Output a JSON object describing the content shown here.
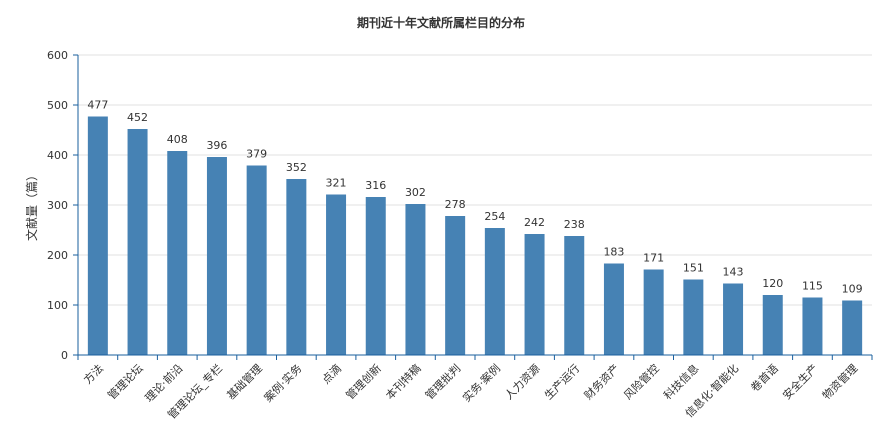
{
  "chart_data": {
    "type": "bar",
    "title": "期刊近十年文献所属栏目的分布",
    "xlabel": "",
    "ylabel": "文献量（篇）",
    "ylim": [
      0,
      600
    ],
    "yticks": [
      0,
      100,
      200,
      300,
      400,
      500,
      600
    ],
    "grid": true,
    "legend": "none",
    "bar_color": "#4682b4",
    "categories": [
      "方法",
      "管理论坛",
      "理论·前沿",
      "管理论坛_专栏",
      "基础管理",
      "案例·实务",
      "点滴",
      "管理创新",
      "本刊特稿",
      "管理批判",
      "实务·案例",
      "人力资源",
      "生产运行",
      "财务资产",
      "风险管控",
      "科技信息",
      "信息化·智能化",
      "卷首语",
      "安全生产",
      "物资管理"
    ],
    "values": [
      477,
      452,
      408,
      396,
      379,
      352,
      321,
      316,
      302,
      278,
      254,
      242,
      238,
      183,
      171,
      151,
      143,
      120,
      115,
      109
    ]
  }
}
